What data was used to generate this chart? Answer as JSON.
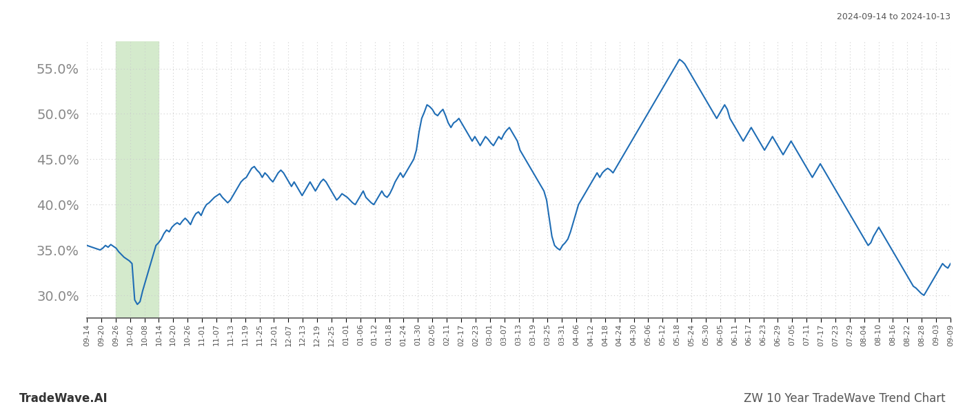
{
  "title_top_right": "2024-09-14 to 2024-10-13",
  "title_bottom_right": "ZW 10 Year TradeWave Trend Chart",
  "title_bottom_left": "TradeWave.AI",
  "line_color": "#1f6db5",
  "line_width": 1.5,
  "highlight_color": "#d4eacc",
  "highlight_alpha": 1.0,
  "background_color": "#ffffff",
  "grid_color": "#cccccc",
  "grid_linestyle": "dotted",
  "ylim": [
    27.5,
    58.0
  ],
  "yticks": [
    30.0,
    35.0,
    40.0,
    45.0,
    50.0,
    55.0
  ],
  "ytick_fontsize": 14,
  "xtick_fontsize": 8,
  "x_labels": [
    "09-14",
    "09-20",
    "09-26",
    "10-02",
    "10-08",
    "10-14",
    "10-20",
    "10-26",
    "11-01",
    "11-07",
    "11-13",
    "11-19",
    "11-25",
    "12-01",
    "12-07",
    "12-13",
    "12-19",
    "12-25",
    "01-01",
    "01-06",
    "01-12",
    "01-18",
    "01-24",
    "01-30",
    "02-05",
    "02-11",
    "02-17",
    "02-23",
    "03-01",
    "03-07",
    "03-13",
    "03-19",
    "03-25",
    "03-31",
    "04-06",
    "04-12",
    "04-18",
    "04-24",
    "04-30",
    "05-06",
    "05-12",
    "05-18",
    "05-24",
    "05-30",
    "06-05",
    "06-11",
    "06-17",
    "06-23",
    "06-29",
    "07-05",
    "07-11",
    "07-17",
    "07-23",
    "07-29",
    "08-04",
    "08-10",
    "08-16",
    "08-22",
    "08-28",
    "09-03",
    "09-09"
  ],
  "highlight_start_label": "09-26",
  "highlight_end_label": "10-14",
  "y_data": [
    35.5,
    35.4,
    35.3,
    35.2,
    35.1,
    35.0,
    35.2,
    35.5,
    35.3,
    35.6,
    35.4,
    35.2,
    34.8,
    34.5,
    34.2,
    34.0,
    33.8,
    33.5,
    29.5,
    29.0,
    29.3,
    30.5,
    31.5,
    32.5,
    33.5,
    34.5,
    35.5,
    35.8,
    36.2,
    36.8,
    37.2,
    37.0,
    37.5,
    37.8,
    38.0,
    37.8,
    38.2,
    38.5,
    38.2,
    37.8,
    38.5,
    39.0,
    39.2,
    38.8,
    39.5,
    40.0,
    40.2,
    40.5,
    40.8,
    41.0,
    41.2,
    40.8,
    40.5,
    40.2,
    40.5,
    41.0,
    41.5,
    42.0,
    42.5,
    42.8,
    43.0,
    43.5,
    44.0,
    44.2,
    43.8,
    43.5,
    43.0,
    43.5,
    43.2,
    42.8,
    42.5,
    43.0,
    43.5,
    43.8,
    43.5,
    43.0,
    42.5,
    42.0,
    42.5,
    42.0,
    41.5,
    41.0,
    41.5,
    42.0,
    42.5,
    42.0,
    41.5,
    42.0,
    42.5,
    42.8,
    42.5,
    42.0,
    41.5,
    41.0,
    40.5,
    40.8,
    41.2,
    41.0,
    40.8,
    40.5,
    40.2,
    40.0,
    40.5,
    41.0,
    41.5,
    40.8,
    40.5,
    40.2,
    40.0,
    40.5,
    41.0,
    41.5,
    41.0,
    40.8,
    41.2,
    41.8,
    42.5,
    43.0,
    43.5,
    43.0,
    43.5,
    44.0,
    44.5,
    45.0,
    46.0,
    48.0,
    49.5,
    50.2,
    51.0,
    50.8,
    50.5,
    50.0,
    49.8,
    50.2,
    50.5,
    49.8,
    49.0,
    48.5,
    49.0,
    49.2,
    49.5,
    49.0,
    48.5,
    48.0,
    47.5,
    47.0,
    47.5,
    47.0,
    46.5,
    47.0,
    47.5,
    47.2,
    46.8,
    46.5,
    47.0,
    47.5,
    47.2,
    47.8,
    48.2,
    48.5,
    48.0,
    47.5,
    47.0,
    46.0,
    45.5,
    45.0,
    44.5,
    44.0,
    43.5,
    43.0,
    42.5,
    42.0,
    41.5,
    40.5,
    38.5,
    36.5,
    35.5,
    35.2,
    35.0,
    35.5,
    35.8,
    36.2,
    37.0,
    38.0,
    39.0,
    40.0,
    40.5,
    41.0,
    41.5,
    42.0,
    42.5,
    43.0,
    43.5,
    43.0,
    43.5,
    43.8,
    44.0,
    43.8,
    43.5,
    44.0,
    44.5,
    45.0,
    45.5,
    46.0,
    46.5,
    47.0,
    47.5,
    48.0,
    48.5,
    49.0,
    49.5,
    50.0,
    50.5,
    51.0,
    51.5,
    52.0,
    52.5,
    53.0,
    53.5,
    54.0,
    54.5,
    55.0,
    55.5,
    56.0,
    55.8,
    55.5,
    55.0,
    54.5,
    54.0,
    53.5,
    53.0,
    52.5,
    52.0,
    51.5,
    51.0,
    50.5,
    50.0,
    49.5,
    50.0,
    50.5,
    51.0,
    50.5,
    49.5,
    49.0,
    48.5,
    48.0,
    47.5,
    47.0,
    47.5,
    48.0,
    48.5,
    48.0,
    47.5,
    47.0,
    46.5,
    46.0,
    46.5,
    47.0,
    47.5,
    47.0,
    46.5,
    46.0,
    45.5,
    46.0,
    46.5,
    47.0,
    46.5,
    46.0,
    45.5,
    45.0,
    44.5,
    44.0,
    43.5,
    43.0,
    43.5,
    44.0,
    44.5,
    44.0,
    43.5,
    43.0,
    42.5,
    42.0,
    41.5,
    41.0,
    40.5,
    40.0,
    39.5,
    39.0,
    38.5,
    38.0,
    37.5,
    37.0,
    36.5,
    36.0,
    35.5,
    35.8,
    36.5,
    37.0,
    37.5,
    37.0,
    36.5,
    36.0,
    35.5,
    35.0,
    34.5,
    34.0,
    33.5,
    33.0,
    32.5,
    32.0,
    31.5,
    31.0,
    30.8,
    30.5,
    30.2,
    30.0,
    30.5,
    31.0,
    31.5,
    32.0,
    32.5,
    33.0,
    33.5,
    33.2,
    33.0,
    33.5
  ]
}
